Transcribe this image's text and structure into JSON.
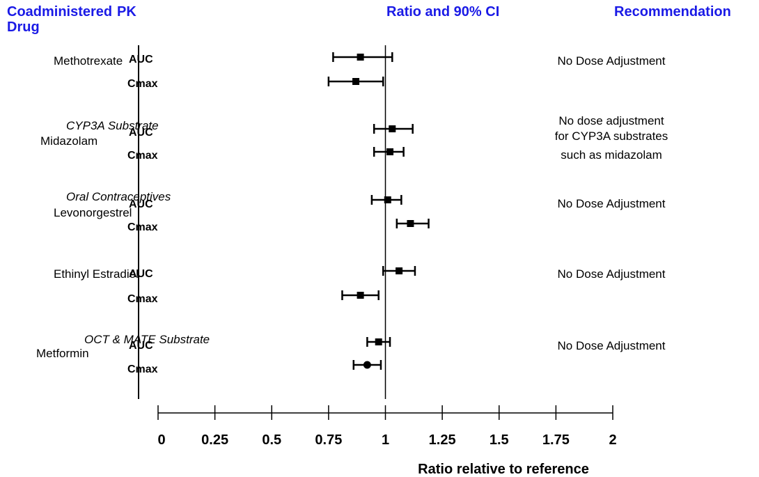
{
  "headers": {
    "drug_line1": "Coadministered",
    "drug_line2": "Drug",
    "pk": "PK",
    "ratio": "Ratio and 90% CI",
    "recommendation": "Recommendation"
  },
  "drugs": [
    {
      "name": "Methotrexate",
      "subtitle": "",
      "recommendation": [
        "No Dose Adjustment"
      ]
    },
    {
      "name": "Midazolam",
      "subtitle": "CYP3A Substrate",
      "recommendation": [
        "No dose adjustment",
        "for CYP3A substrates",
        "such as midazolam"
      ]
    },
    {
      "name": "Levonorgestrel",
      "subtitle": "Oral Contraceptives",
      "recommendation": [
        "No Dose Adjustment"
      ]
    },
    {
      "name": "Ethinyl Estradiol",
      "subtitle": "",
      "recommendation": [
        "No Dose Adjustment"
      ]
    },
    {
      "name": "Metformin",
      "subtitle": "OCT & MATE Substrate",
      "recommendation": [
        "No Dose Adjustment"
      ]
    }
  ],
  "chart_data": {
    "type": "forest",
    "xlabel": "Ratio relative to reference",
    "xlim": [
      0,
      2
    ],
    "xticks": [
      0,
      0.25,
      0.5,
      0.75,
      1,
      1.25,
      1.5,
      1.75,
      2
    ],
    "xtick_labels": [
      "0",
      "0.25",
      "0.5",
      "0.75",
      "1",
      "1.25",
      "1.5",
      "1.75",
      "2"
    ],
    "reference_line": 1,
    "rows": [
      {
        "drug": "Methotrexate",
        "pk": "AUC",
        "point": 0.89,
        "lo": 0.77,
        "hi": 1.03
      },
      {
        "drug": "Methotrexate",
        "pk": "Cmax",
        "point": 0.87,
        "lo": 0.75,
        "hi": 0.99
      },
      {
        "drug": "Midazolam",
        "pk": "AUC",
        "point": 1.03,
        "lo": 0.95,
        "hi": 1.12
      },
      {
        "drug": "Midazolam",
        "pk": "Cmax",
        "point": 1.02,
        "lo": 0.95,
        "hi": 1.08
      },
      {
        "drug": "Levonorgestrel",
        "pk": "AUC",
        "point": 1.01,
        "lo": 0.94,
        "hi": 1.07
      },
      {
        "drug": "Levonorgestrel",
        "pk": "Cmax",
        "point": 1.11,
        "lo": 1.05,
        "hi": 1.19
      },
      {
        "drug": "Ethinyl Estradiol",
        "pk": "AUC",
        "point": 1.06,
        "lo": 0.99,
        "hi": 1.13
      },
      {
        "drug": "Ethinyl Estradiol",
        "pk": "Cmax",
        "point": 0.89,
        "lo": 0.81,
        "hi": 0.97
      },
      {
        "drug": "Metformin",
        "pk": "AUC",
        "point": 0.97,
        "lo": 0.92,
        "hi": 1.02
      },
      {
        "drug": "Metformin",
        "pk": "Cmax",
        "point": 0.92,
        "lo": 0.86,
        "hi": 0.98
      }
    ]
  }
}
